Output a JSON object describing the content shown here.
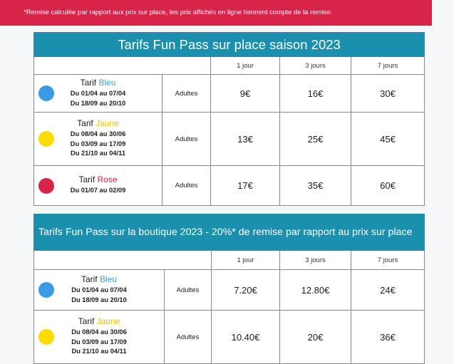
{
  "notice": "*Remise calculée par rapport aux prix sur place, les prix affichés en ligne tiennent compte de la remise.",
  "colors": {
    "Bleu": "#3a9be6",
    "Jaune": "#fcdc00",
    "Rose": "#d9244a",
    "banner": "#1a8fae"
  },
  "table1": {
    "title": "Tarifs Fun Pass sur place saison 2023",
    "headers": [
      "1 jour",
      "3 jours",
      "7 jours"
    ],
    "rows": [
      {
        "label": "Tarif",
        "color": "Bleu",
        "dates": [
          "Du 01/04 au 07/04",
          "Du 18/09 au 20/10"
        ],
        "category": "Adultes",
        "prices": [
          "9€",
          "16€",
          "30€"
        ]
      },
      {
        "label": "Tarif",
        "color": "Jaune",
        "dates": [
          "Du 08/04 au 30/06",
          "Du 03/09 au 17/09",
          "Du 21/10 au 04/11"
        ],
        "category": "Adultes",
        "prices": [
          "13€",
          "25€",
          "45€"
        ]
      },
      {
        "label": "Tarif",
        "color": "Rose",
        "dates": [
          "Du 01/07 au 02/09"
        ],
        "category": "Adultes",
        "prices": [
          "17€",
          "35€",
          "60€"
        ]
      }
    ]
  },
  "table2": {
    "title": "Tarifs Fun Pass sur la boutique 2023  - 20%* de remise par rapport au prix sur place",
    "headers": [
      "1 jour",
      "3 jours",
      "7 jours"
    ],
    "rows": [
      {
        "label": "Tarif",
        "color": "Bleu",
        "dates": [
          "Du 01/04 au 07/04",
          "Du 18/09 au 20/10"
        ],
        "category": "Adultes",
        "prices": [
          "7.20€",
          "12.80€",
          "24€"
        ]
      },
      {
        "label": "Tarif",
        "color": "Jaune",
        "dates": [
          "Du 08/04 au 30/06",
          "Du 03/09 au 17/09",
          "Du 21/10 au 04/11"
        ],
        "category": "Adultes",
        "prices": [
          "10.40€",
          "20€",
          "36€"
        ]
      }
    ]
  }
}
